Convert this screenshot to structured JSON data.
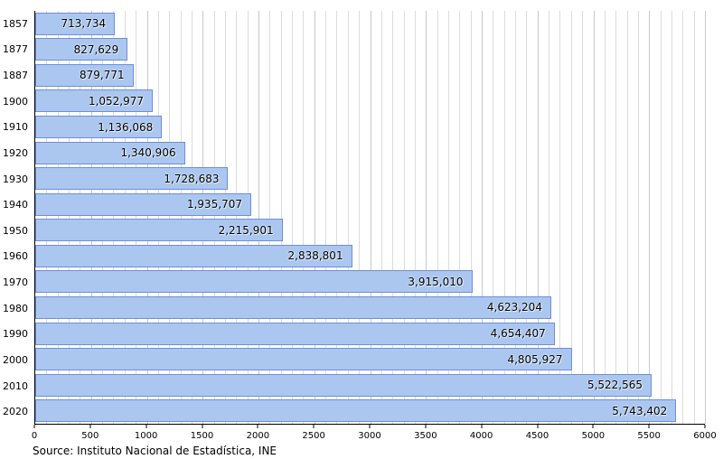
{
  "chart_data": {
    "type": "bar",
    "orientation": "horizontal",
    "title": "",
    "xlabel": "",
    "ylabel": "",
    "categories": [
      "1857",
      "1877",
      "1887",
      "1900",
      "1910",
      "1920",
      "1930",
      "1940",
      "1950",
      "1960",
      "1970",
      "1980",
      "1990",
      "2000",
      "2010",
      "2020"
    ],
    "values": [
      713734,
      827629,
      879771,
      1052977,
      1136068,
      1340906,
      1728683,
      1935707,
      2215901,
      2838801,
      3915010,
      4623204,
      4654407,
      4805927,
      5522565,
      5743402
    ],
    "value_labels": [
      "713,734",
      "827,629",
      "879,771",
      "1,052,977",
      "1,136,068",
      "1,340,906",
      "1,728,683",
      "1,935,707",
      "2,215,901",
      "2,838,801",
      "3,915,010",
      "4,623,204",
      "4,654,407",
      "4,805,927",
      "5,522,565",
      "5,743,402"
    ],
    "xlim": [
      0,
      6000
    ],
    "x_tick_step": 500,
    "x_tick_labels": [
      "0",
      "500",
      "1000",
      "1500",
      "2000",
      "2500",
      "3000",
      "3500",
      "4000",
      "4500",
      "5000",
      "5500",
      "6000"
    ],
    "x_unit": "thousands",
    "grid": "vertical minor every 100, major every 500",
    "legend": "none",
    "colors": {
      "bar_fill": "#abc7f0",
      "bar_border": "#6d8ed9",
      "grid_minor": "#dcdcdc",
      "grid_major": "#c8c8c8",
      "axis": "#000000",
      "text": "#000000"
    },
    "source": "Source: Instituto Nacional de Estadística, INE"
  }
}
